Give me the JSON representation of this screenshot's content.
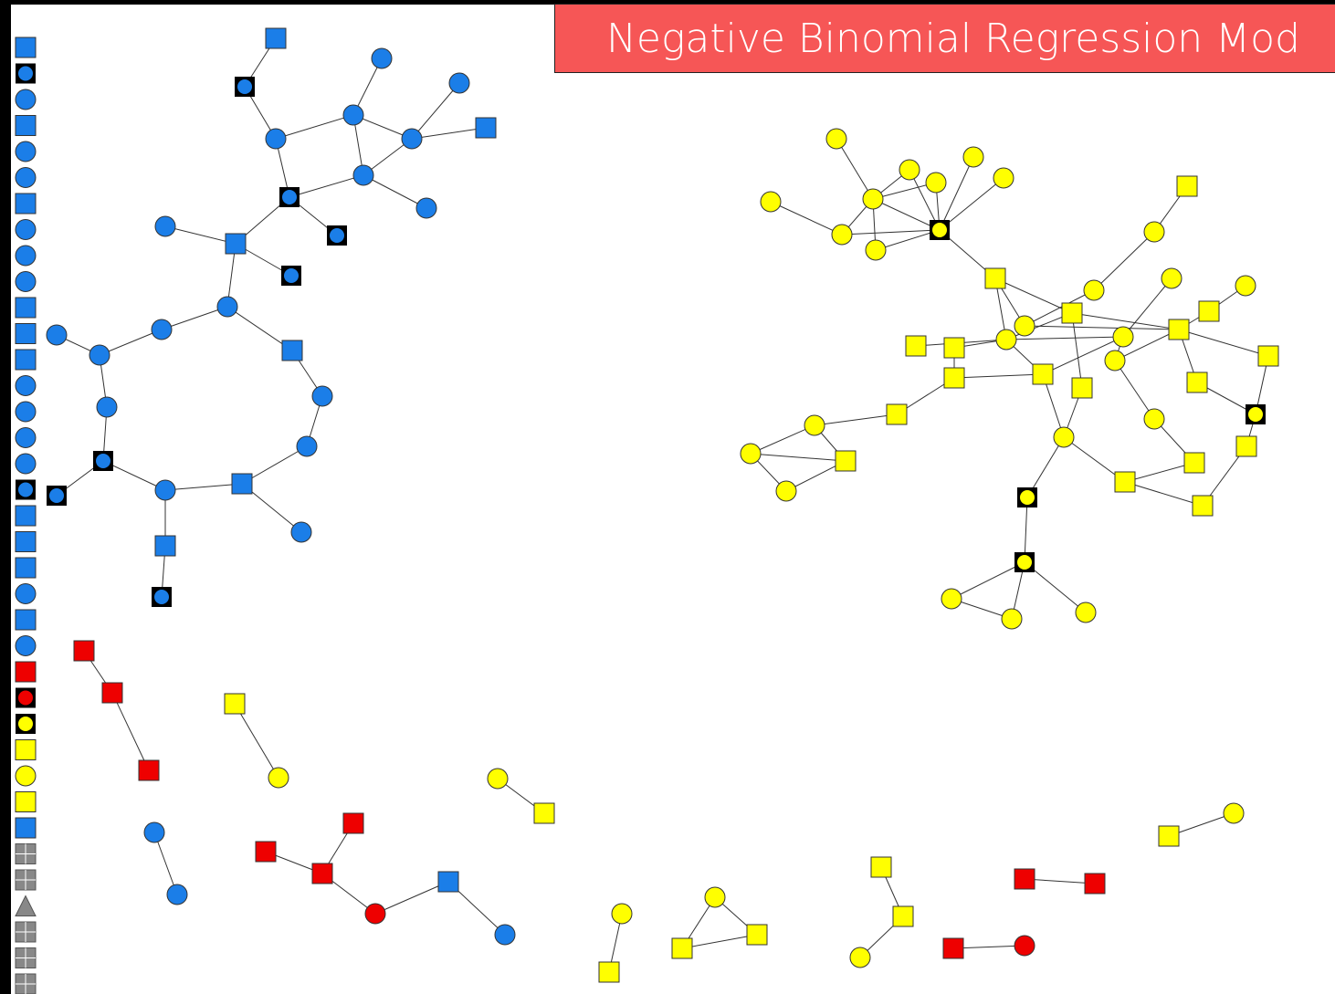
{
  "header": {
    "title": "Negative Binomial Regression Mod"
  }
}
